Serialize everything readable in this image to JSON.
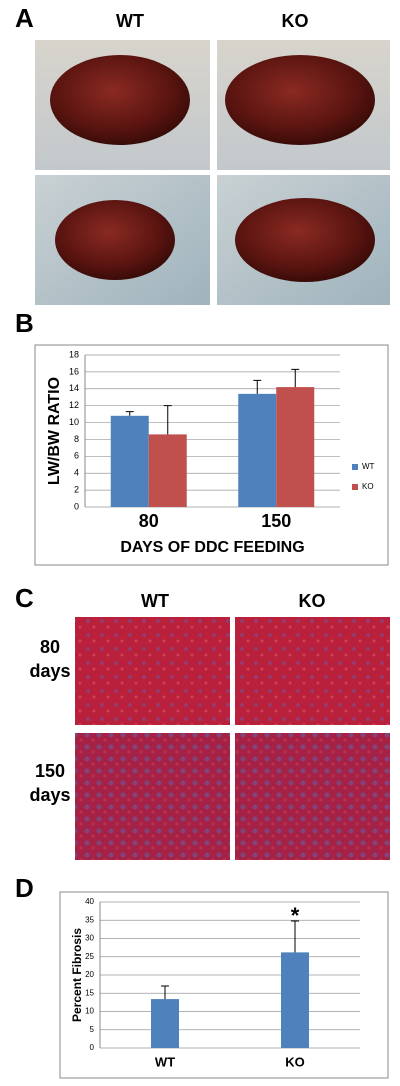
{
  "panel_labels": [
    "A",
    "B",
    "C",
    "D"
  ],
  "panel_a": {
    "columns": [
      "WT",
      "KO"
    ]
  },
  "panel_c": {
    "columns": [
      "WT",
      "KO"
    ],
    "rows": [
      [
        "80",
        "days"
      ],
      [
        "150",
        "days"
      ]
    ]
  },
  "chart_data": [
    {
      "type": "bar",
      "ylabel": "LW/BW RATIO",
      "xlabel": "DAYS OF DDC FEEDING",
      "categories": [
        "80",
        "150"
      ],
      "series": [
        {
          "name": "WT",
          "color": "#4f81bd",
          "values": [
            10.8,
            13.4
          ],
          "errors": [
            0.5,
            1.6
          ]
        },
        {
          "name": "KO",
          "color": "#c0504d",
          "values": [
            8.6,
            14.2
          ],
          "errors": [
            3.4,
            2.1
          ]
        }
      ],
      "ylim": [
        0,
        18
      ],
      "yticks": [
        0,
        2,
        4,
        6,
        8,
        10,
        12,
        14,
        16,
        18
      ],
      "grid": true,
      "legend": "right"
    },
    {
      "type": "bar",
      "ylabel": "Percent Fibrosis",
      "categories": [
        "WT",
        "KO"
      ],
      "values": [
        13.4,
        26.2
      ],
      "errors": [
        3.6,
        8.6
      ],
      "color": "#4f81bd",
      "ylim": [
        0,
        40
      ],
      "yticks": [
        0,
        5,
        10,
        15,
        20,
        25,
        30,
        35,
        40
      ],
      "grid": true,
      "annotations": [
        {
          "text": "*",
          "category": "KO"
        }
      ]
    }
  ]
}
